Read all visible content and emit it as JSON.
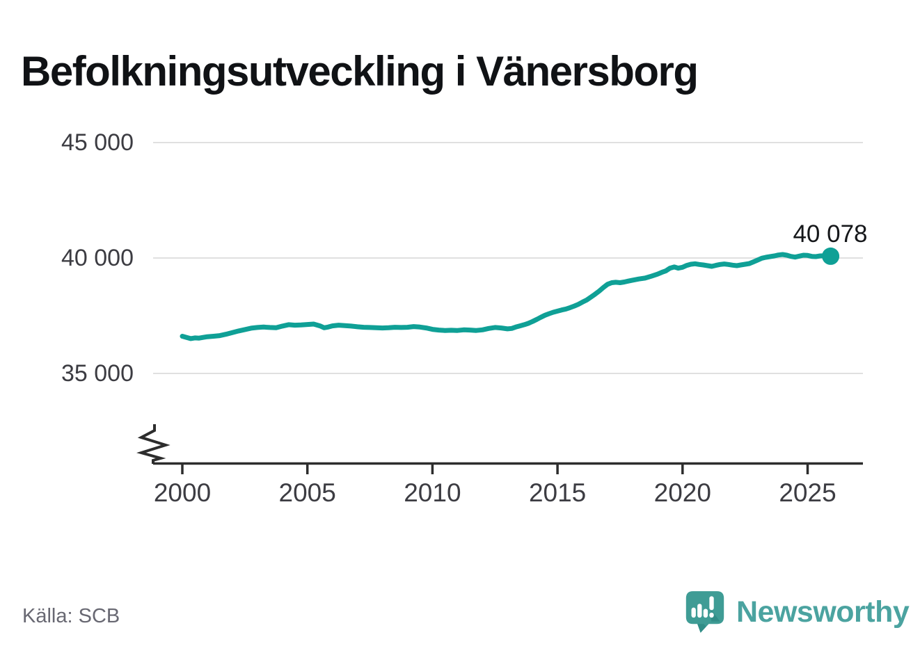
{
  "title": "Befolkningsutveckling i Vänersborg",
  "source": "Källa: SCB",
  "branding": {
    "name": "Newsworthy",
    "logo_icon": "newsworthy-speech-bubble-chart-icon",
    "bubble_color": "#3F9C95",
    "bubble_shadow_color": "#318D87",
    "text_color": "#4BA3A0"
  },
  "chart_data": {
    "type": "line",
    "title": "Befolkningsutveckling i Vänersborg",
    "xlabel": "",
    "ylabel": "",
    "grid": "horizontal",
    "gridline_color": "#e0e0e0",
    "axis_color": "#2d2d2d",
    "axis_break": true,
    "ylim": [
      34400,
      45600
    ],
    "xlim": [
      1998.8,
      2027.2
    ],
    "yticks": [
      35000,
      40000,
      45000
    ],
    "ytick_labels": [
      "35 000",
      "40 000",
      "45 000"
    ],
    "xticks": [
      2000,
      2005,
      2010,
      2015,
      2020,
      2025
    ],
    "xtick_labels": [
      "2000",
      "2005",
      "2010",
      "2015",
      "2020",
      "2025"
    ],
    "end_label": "40 078",
    "end_value": 40078,
    "series": [
      {
        "name": "Befolkning i Vänersborg",
        "color": "#0FA096",
        "points": [
          [
            2000.0,
            36610
          ],
          [
            2000.17,
            36560
          ],
          [
            2000.33,
            36510
          ],
          [
            2000.5,
            36540
          ],
          [
            2000.67,
            36530
          ],
          [
            2000.83,
            36560
          ],
          [
            2001.0,
            36590
          ],
          [
            2001.25,
            36610
          ],
          [
            2001.5,
            36640
          ],
          [
            2001.75,
            36700
          ],
          [
            2002.0,
            36770
          ],
          [
            2002.25,
            36840
          ],
          [
            2002.5,
            36900
          ],
          [
            2002.75,
            36960
          ],
          [
            2003.0,
            36990
          ],
          [
            2003.25,
            37010
          ],
          [
            2003.5,
            36990
          ],
          [
            2003.75,
            36980
          ],
          [
            2004.0,
            37050
          ],
          [
            2004.25,
            37110
          ],
          [
            2004.5,
            37090
          ],
          [
            2004.75,
            37100
          ],
          [
            2005.0,
            37120
          ],
          [
            2005.25,
            37140
          ],
          [
            2005.5,
            37060
          ],
          [
            2005.67,
            36980
          ],
          [
            2005.83,
            37010
          ],
          [
            2006.0,
            37060
          ],
          [
            2006.25,
            37090
          ],
          [
            2006.5,
            37070
          ],
          [
            2006.75,
            37050
          ],
          [
            2007.0,
            37020
          ],
          [
            2007.25,
            37000
          ],
          [
            2007.5,
            36990
          ],
          [
            2007.75,
            36980
          ],
          [
            2008.0,
            36970
          ],
          [
            2008.25,
            36980
          ],
          [
            2008.5,
            37000
          ],
          [
            2008.75,
            36990
          ],
          [
            2009.0,
            37000
          ],
          [
            2009.25,
            37030
          ],
          [
            2009.5,
            37010
          ],
          [
            2009.75,
            36970
          ],
          [
            2010.0,
            36910
          ],
          [
            2010.25,
            36880
          ],
          [
            2010.5,
            36860
          ],
          [
            2010.75,
            36870
          ],
          [
            2011.0,
            36860
          ],
          [
            2011.25,
            36890
          ],
          [
            2011.5,
            36880
          ],
          [
            2011.75,
            36860
          ],
          [
            2012.0,
            36890
          ],
          [
            2012.25,
            36950
          ],
          [
            2012.5,
            36990
          ],
          [
            2012.75,
            36970
          ],
          [
            2013.0,
            36930
          ],
          [
            2013.17,
            36950
          ],
          [
            2013.33,
            37010
          ],
          [
            2013.5,
            37060
          ],
          [
            2013.67,
            37110
          ],
          [
            2013.83,
            37170
          ],
          [
            2014.0,
            37250
          ],
          [
            2014.17,
            37340
          ],
          [
            2014.33,
            37430
          ],
          [
            2014.5,
            37520
          ],
          [
            2014.67,
            37590
          ],
          [
            2014.83,
            37650
          ],
          [
            2015.0,
            37700
          ],
          [
            2015.17,
            37750
          ],
          [
            2015.33,
            37790
          ],
          [
            2015.5,
            37850
          ],
          [
            2015.67,
            37920
          ],
          [
            2015.83,
            37990
          ],
          [
            2016.0,
            38090
          ],
          [
            2016.17,
            38180
          ],
          [
            2016.33,
            38300
          ],
          [
            2016.5,
            38430
          ],
          [
            2016.67,
            38570
          ],
          [
            2016.83,
            38720
          ],
          [
            2017.0,
            38860
          ],
          [
            2017.17,
            38930
          ],
          [
            2017.33,
            38950
          ],
          [
            2017.5,
            38930
          ],
          [
            2017.67,
            38960
          ],
          [
            2017.83,
            39000
          ],
          [
            2018.0,
            39040
          ],
          [
            2018.25,
            39090
          ],
          [
            2018.5,
            39130
          ],
          [
            2018.75,
            39210
          ],
          [
            2019.0,
            39300
          ],
          [
            2019.17,
            39380
          ],
          [
            2019.33,
            39440
          ],
          [
            2019.5,
            39560
          ],
          [
            2019.67,
            39610
          ],
          [
            2019.83,
            39560
          ],
          [
            2020.0,
            39600
          ],
          [
            2020.17,
            39680
          ],
          [
            2020.33,
            39730
          ],
          [
            2020.5,
            39750
          ],
          [
            2020.67,
            39720
          ],
          [
            2020.83,
            39700
          ],
          [
            2021.0,
            39670
          ],
          [
            2021.17,
            39640
          ],
          [
            2021.33,
            39680
          ],
          [
            2021.5,
            39720
          ],
          [
            2021.67,
            39740
          ],
          [
            2021.83,
            39720
          ],
          [
            2022.0,
            39690
          ],
          [
            2022.17,
            39670
          ],
          [
            2022.33,
            39700
          ],
          [
            2022.5,
            39730
          ],
          [
            2022.67,
            39760
          ],
          [
            2022.83,
            39830
          ],
          [
            2023.0,
            39910
          ],
          [
            2023.17,
            39990
          ],
          [
            2023.33,
            40030
          ],
          [
            2023.5,
            40060
          ],
          [
            2023.67,
            40090
          ],
          [
            2023.83,
            40130
          ],
          [
            2024.0,
            40150
          ],
          [
            2024.17,
            40120
          ],
          [
            2024.33,
            40070
          ],
          [
            2024.5,
            40040
          ],
          [
            2024.67,
            40080
          ],
          [
            2024.83,
            40120
          ],
          [
            2025.0,
            40110
          ],
          [
            2025.17,
            40070
          ],
          [
            2025.33,
            40060
          ],
          [
            2025.5,
            40090
          ],
          [
            2025.67,
            40100
          ],
          [
            2025.92,
            40078
          ]
        ]
      }
    ]
  }
}
